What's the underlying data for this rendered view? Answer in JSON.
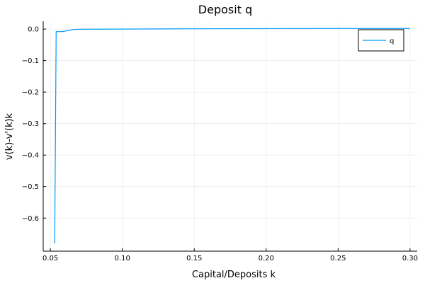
{
  "chart_data": {
    "type": "line",
    "title": "Deposit q",
    "xlabel": "Capital/Deposits k",
    "ylabel": "v(k)-v'(k)k",
    "xlim": [
      0.045,
      0.305
    ],
    "ylim": [
      -0.705,
      0.025
    ],
    "x_ticks": [
      0.05,
      0.1,
      0.15,
      0.2,
      0.25,
      0.3
    ],
    "x_tick_labels": [
      "0.05",
      "0.10",
      "0.15",
      "0.20",
      "0.25",
      "0.30"
    ],
    "y_ticks": [
      0.0,
      -0.1,
      -0.2,
      -0.3,
      -0.4,
      -0.5,
      -0.6
    ],
    "y_tick_labels": [
      "0.0",
      "−0.1",
      "−0.2",
      "−0.3",
      "−0.4",
      "−0.5",
      "−0.6"
    ],
    "grid": true,
    "legend_position": "top-right",
    "series": [
      {
        "name": "q",
        "color": "#009af9",
        "x": [
          0.053,
          0.054,
          0.058,
          0.062,
          0.066,
          0.072,
          0.08,
          0.1,
          0.15,
          0.2,
          0.25,
          0.3
        ],
        "y": [
          -0.68,
          -0.008,
          -0.008,
          -0.005,
          -0.001,
          -0.0005,
          -0.0003,
          0.0,
          0.001,
          0.0015,
          0.002,
          0.002
        ]
      }
    ]
  }
}
